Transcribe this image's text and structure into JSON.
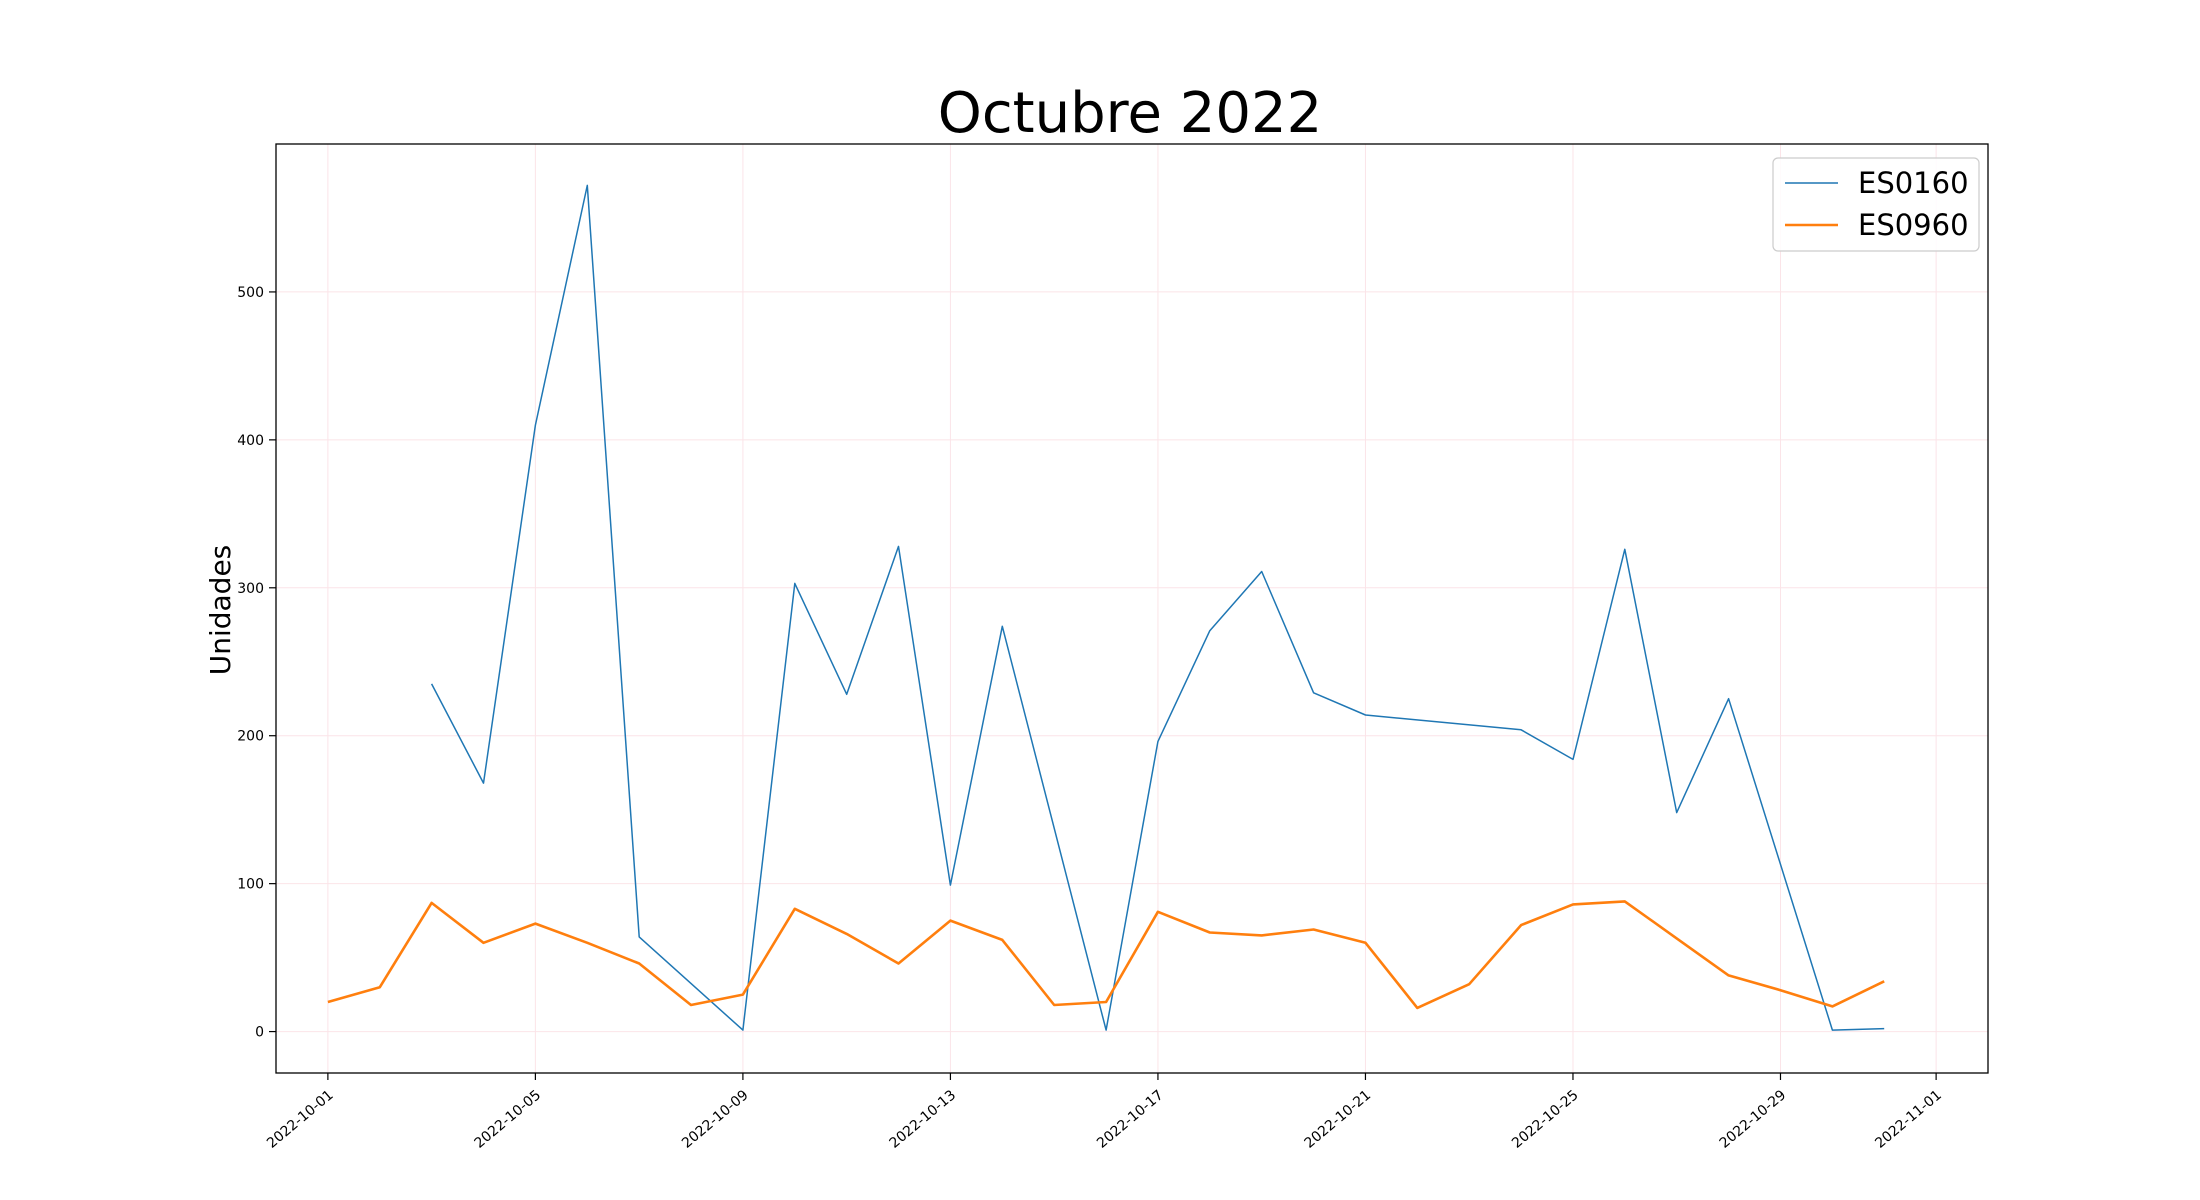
{
  "chart_data": {
    "type": "line",
    "title": "Octubre 2022",
    "xlabel": "",
    "ylabel": "Unidades",
    "xlim": [
      "2022-09-30",
      "2022-11-02"
    ],
    "ylim": [
      -28,
      600
    ],
    "grid": true,
    "legend_position": "top-right",
    "x_ticks": [
      "2022-10-01",
      "2022-10-05",
      "2022-10-09",
      "2022-10-13",
      "2022-10-17",
      "2022-10-21",
      "2022-10-25",
      "2022-10-29",
      "2022-11-01"
    ],
    "y_ticks": [
      0,
      100,
      200,
      300,
      400,
      500
    ],
    "series": [
      {
        "name": "ES0160",
        "color": "#1f77b4",
        "points": [
          {
            "x": "2022-10-03",
            "y": 235
          },
          {
            "x": "2022-10-04",
            "y": 168
          },
          {
            "x": "2022-10-05",
            "y": 410
          },
          {
            "x": "2022-10-06",
            "y": 572
          },
          {
            "x": "2022-10-07",
            "y": 64
          },
          {
            "x": "2022-10-09",
            "y": 1
          },
          {
            "x": "2022-10-10",
            "y": 303
          },
          {
            "x": "2022-10-11",
            "y": 228
          },
          {
            "x": "2022-10-12",
            "y": 328
          },
          {
            "x": "2022-10-13",
            "y": 99
          },
          {
            "x": "2022-10-14",
            "y": 274
          },
          {
            "x": "2022-10-16",
            "y": 1
          },
          {
            "x": "2022-10-17",
            "y": 196
          },
          {
            "x": "2022-10-18",
            "y": 271
          },
          {
            "x": "2022-10-19",
            "y": 311
          },
          {
            "x": "2022-10-20",
            "y": 229
          },
          {
            "x": "2022-10-21",
            "y": 214
          },
          {
            "x": "2022-10-24",
            "y": 204
          },
          {
            "x": "2022-10-25",
            "y": 184
          },
          {
            "x": "2022-10-26",
            "y": 326
          },
          {
            "x": "2022-10-27",
            "y": 148
          },
          {
            "x": "2022-10-28",
            "y": 225
          },
          {
            "x": "2022-10-30",
            "y": 1
          },
          {
            "x": "2022-10-31",
            "y": 2
          }
        ]
      },
      {
        "name": "ES0960",
        "color": "#ff7f0e",
        "points": [
          {
            "x": "2022-10-01",
            "y": 20
          },
          {
            "x": "2022-10-02",
            "y": 30
          },
          {
            "x": "2022-10-03",
            "y": 87
          },
          {
            "x": "2022-10-04",
            "y": 60
          },
          {
            "x": "2022-10-05",
            "y": 73
          },
          {
            "x": "2022-10-06",
            "y": 60
          },
          {
            "x": "2022-10-07",
            "y": 46
          },
          {
            "x": "2022-10-08",
            "y": 18
          },
          {
            "x": "2022-10-09",
            "y": 25
          },
          {
            "x": "2022-10-10",
            "y": 83
          },
          {
            "x": "2022-10-11",
            "y": 66
          },
          {
            "x": "2022-10-12",
            "y": 46
          },
          {
            "x": "2022-10-13",
            "y": 75
          },
          {
            "x": "2022-10-14",
            "y": 62
          },
          {
            "x": "2022-10-15",
            "y": 18
          },
          {
            "x": "2022-10-16",
            "y": 20
          },
          {
            "x": "2022-10-17",
            "y": 81
          },
          {
            "x": "2022-10-18",
            "y": 67
          },
          {
            "x": "2022-10-19",
            "y": 65
          },
          {
            "x": "2022-10-20",
            "y": 69
          },
          {
            "x": "2022-10-21",
            "y": 60
          },
          {
            "x": "2022-10-22",
            "y": 16
          },
          {
            "x": "2022-10-23",
            "y": 32
          },
          {
            "x": "2022-10-24",
            "y": 72
          },
          {
            "x": "2022-10-25",
            "y": 86
          },
          {
            "x": "2022-10-26",
            "y": 88
          },
          {
            "x": "2022-10-27",
            "y": 63
          },
          {
            "x": "2022-10-28",
            "y": 38
          },
          {
            "x": "2022-10-29",
            "y": 28
          },
          {
            "x": "2022-10-30",
            "y": 17
          },
          {
            "x": "2022-10-31",
            "y": 34
          }
        ]
      }
    ]
  }
}
